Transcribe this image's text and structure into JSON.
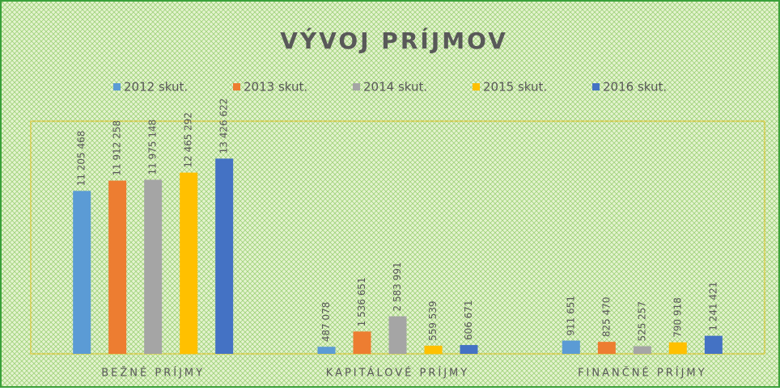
{
  "chart_data": {
    "type": "bar",
    "title": "VÝVOJ PRÍJMOV",
    "categories": [
      "BEŽNÉ PRÍJMY",
      "KAPITÁLOVÉ PRÍJMY",
      "FINANČNÉ PRÍJMY"
    ],
    "series": [
      {
        "name": "2012 skut.",
        "color": "#5b9bd5",
        "values": [
          11205468,
          487078,
          911651
        ],
        "value_labels": [
          "11 205 468",
          "487 078",
          "911 651"
        ]
      },
      {
        "name": "2013 skut.",
        "color": "#ed7d31",
        "values": [
          11912258,
          1536651,
          825470
        ],
        "value_labels": [
          "11 912 258",
          "1 536 651",
          "825 470"
        ]
      },
      {
        "name": "2014 skut.",
        "color": "#a5a5a5",
        "values": [
          11975148,
          2583991,
          525257
        ],
        "value_labels": [
          "11 975 148",
          "2 583 991",
          "525 257"
        ]
      },
      {
        "name": "2015 skut.",
        "color": "#ffc000",
        "values": [
          12465292,
          559539,
          790918
        ],
        "value_labels": [
          "12 465 292",
          "559 539",
          "790 918"
        ]
      },
      {
        "name": "2016 skut.",
        "color": "#4472c4",
        "values": [
          13426622,
          606671,
          1241421
        ],
        "value_labels": [
          "13 426 622",
          "606 671",
          "1 241 421"
        ]
      }
    ],
    "ylim": [
      0,
      16000000
    ]
  }
}
